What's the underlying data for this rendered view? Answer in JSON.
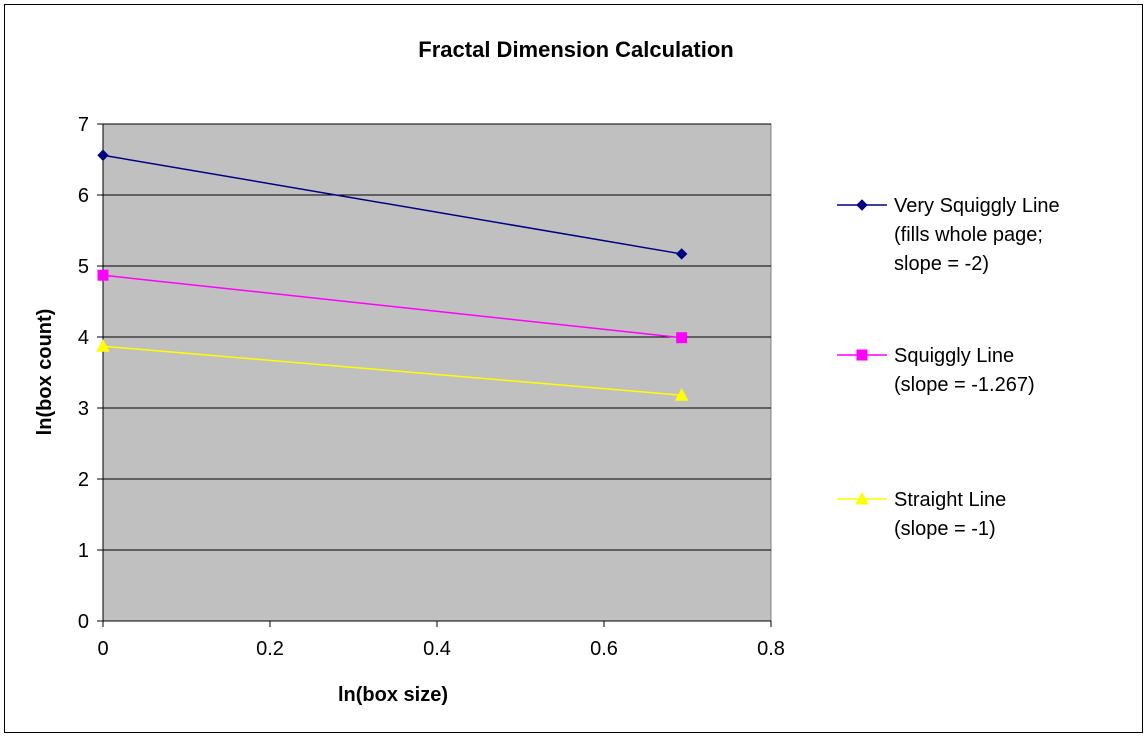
{
  "chart_data": {
    "type": "line",
    "title": "Fractal Dimension Calculation",
    "xlabel": "ln(box size)",
    "ylabel": "ln(box count)",
    "xlim": [
      0,
      0.8
    ],
    "ylim": [
      0,
      7
    ],
    "xticks": [
      "0",
      "0.2",
      "0.4",
      "0.6",
      "0.8"
    ],
    "yticks": [
      "0",
      "1",
      "2",
      "3",
      "4",
      "5",
      "6",
      "7"
    ],
    "grid": true,
    "plot_background": "#c0c0c0",
    "legend_position": "right",
    "series": [
      {
        "name": "Very Squiggly Line (fills whole page; slope = -2)",
        "legend_lines": [
          "Very Squiggly Line",
          "(fills whole page;",
          "slope = -2)"
        ],
        "color": "#000080",
        "marker": "diamond",
        "x": [
          0,
          0.693
        ],
        "y": [
          6.56,
          5.17
        ]
      },
      {
        "name": "Squiggly Line (slope = -1.267)",
        "legend_lines": [
          "Squiggly Line",
          "(slope = -1.267)"
        ],
        "color": "#ff00ff",
        "marker": "square",
        "x": [
          0,
          0.693
        ],
        "y": [
          4.87,
          3.99
        ]
      },
      {
        "name": "Straight Line (slope = -1)",
        "legend_lines": [
          "Straight Line",
          "(slope = -1)"
        ],
        "color": "#ffff00",
        "marker": "triangle",
        "x": [
          0,
          0.693
        ],
        "y": [
          3.87,
          3.18
        ]
      }
    ]
  }
}
